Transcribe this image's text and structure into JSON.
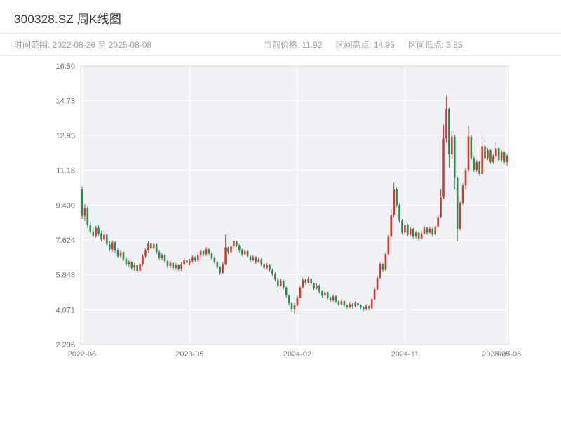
{
  "header": {
    "title": "300328.SZ 周K线图",
    "range_label": "时间范围: 2022-08-26 至 2025-08-08",
    "stats": [
      {
        "label": "当前价格:",
        "value": "11.92"
      },
      {
        "label": "区间高点:",
        "value": "14.95"
      },
      {
        "label": "区间低点:",
        "value": "3.85"
      }
    ]
  },
  "chart_data": {
    "type": "candlestick",
    "title": "300328.SZ 周K线图",
    "symbol": "300328.SZ",
    "period": "weekly",
    "date_range": [
      "2022-08-26",
      "2025-08-08"
    ],
    "current_price": 11.92,
    "range_high": 14.95,
    "range_low": 3.85,
    "xlabel": "",
    "ylabel": "",
    "ylim": [
      2.295,
      16.5
    ],
    "y_ticks": [
      {
        "value": 16.5,
        "label": "16.50"
      },
      {
        "value": 14.73,
        "label": "14.73"
      },
      {
        "value": 12.95,
        "label": "12.95"
      },
      {
        "value": 11.18,
        "label": "11.18"
      },
      {
        "value": 9.4,
        "label": "9.400"
      },
      {
        "value": 7.624,
        "label": "7.624"
      },
      {
        "value": 5.848,
        "label": "5.848"
      },
      {
        "value": 4.071,
        "label": "4.071"
      },
      {
        "value": 2.295,
        "label": "2.295"
      }
    ],
    "x_ticks": [
      {
        "index": 0,
        "label": "2022-08",
        "grid": true
      },
      {
        "index": 39,
        "label": "2023-05",
        "grid": true
      },
      {
        "index": 78,
        "label": "2024-02",
        "grid": true
      },
      {
        "index": 117,
        "label": "2024-11",
        "grid": true
      },
      {
        "index": 150,
        "label": "2025-07",
        "grid": false
      },
      {
        "index": 154,
        "label": "2025-08",
        "grid": true
      }
    ],
    "colors": {
      "up": "#cc3e33",
      "down": "#2e8b50",
      "panel": "#f0f1f5",
      "grid": "#ffffff",
      "border": "#d9dbe1",
      "axis_text": "#70737e"
    },
    "candles": [
      [
        10.2,
        10.35,
        8.7,
        8.85
      ],
      [
        8.85,
        9.45,
        8.6,
        9.25
      ],
      [
        9.25,
        9.35,
        8.25,
        8.4
      ],
      [
        8.4,
        8.55,
        7.95,
        8.05
      ],
      [
        8.05,
        8.3,
        7.75,
        7.85
      ],
      [
        7.85,
        8.35,
        7.75,
        8.25
      ],
      [
        8.25,
        8.4,
        7.85,
        7.95
      ],
      [
        7.95,
        8.1,
        7.55,
        7.65
      ],
      [
        7.65,
        8.0,
        7.55,
        7.9
      ],
      [
        7.9,
        7.95,
        7.3,
        7.4
      ],
      [
        7.4,
        7.55,
        7.05,
        7.15
      ],
      [
        7.15,
        7.6,
        7.05,
        7.5
      ],
      [
        7.5,
        7.55,
        7.0,
        7.1
      ],
      [
        7.1,
        7.2,
        6.7,
        6.8
      ],
      [
        6.8,
        7.1,
        6.7,
        7.0
      ],
      [
        7.0,
        7.05,
        6.55,
        6.65
      ],
      [
        6.65,
        6.75,
        6.3,
        6.4
      ],
      [
        6.4,
        6.6,
        6.25,
        6.5
      ],
      [
        6.5,
        6.55,
        6.1,
        6.2
      ],
      [
        6.2,
        6.45,
        6.05,
        6.35
      ],
      [
        6.35,
        6.4,
        5.95,
        6.05
      ],
      [
        6.05,
        6.5,
        5.95,
        6.4
      ],
      [
        6.4,
        6.9,
        6.3,
        6.8
      ],
      [
        6.8,
        7.2,
        6.7,
        7.1
      ],
      [
        7.1,
        7.55,
        7.0,
        7.45
      ],
      [
        7.45,
        7.5,
        7.1,
        7.2
      ],
      [
        7.2,
        7.5,
        7.1,
        7.4
      ],
      [
        7.4,
        7.45,
        6.9,
        7.0
      ],
      [
        7.0,
        7.1,
        6.6,
        6.7
      ],
      [
        6.7,
        6.95,
        6.6,
        6.85
      ],
      [
        6.85,
        6.9,
        6.45,
        6.55
      ],
      [
        6.55,
        6.6,
        6.2,
        6.3
      ],
      [
        6.3,
        6.55,
        6.2,
        6.45
      ],
      [
        6.45,
        6.5,
        6.1,
        6.2
      ],
      [
        6.2,
        6.45,
        6.1,
        6.35
      ],
      [
        6.35,
        6.4,
        6.05,
        6.15
      ],
      [
        6.15,
        6.5,
        6.05,
        6.4
      ],
      [
        6.4,
        6.7,
        6.3,
        6.6
      ],
      [
        6.6,
        6.65,
        6.35,
        6.45
      ],
      [
        6.45,
        6.65,
        6.35,
        6.55
      ],
      [
        6.55,
        6.85,
        6.45,
        6.75
      ],
      [
        6.75,
        6.8,
        6.5,
        6.6
      ],
      [
        6.6,
        6.95,
        6.5,
        6.85
      ],
      [
        6.85,
        7.15,
        6.75,
        7.05
      ],
      [
        7.05,
        7.1,
        6.8,
        6.9
      ],
      [
        6.9,
        7.25,
        6.8,
        7.15
      ],
      [
        7.15,
        7.2,
        6.85,
        6.95
      ],
      [
        6.95,
        7.0,
        6.6,
        6.7
      ],
      [
        6.7,
        6.8,
        6.4,
        6.5
      ],
      [
        6.5,
        6.55,
        6.15,
        6.25
      ],
      [
        6.25,
        6.3,
        5.85,
        5.95
      ],
      [
        5.95,
        6.5,
        5.9,
        6.4
      ],
      [
        6.4,
        7.9,
        6.35,
        7.25
      ],
      [
        7.25,
        7.3,
        6.9,
        7.0
      ],
      [
        7.0,
        7.4,
        6.95,
        7.3
      ],
      [
        7.3,
        7.65,
        7.2,
        7.55
      ],
      [
        7.55,
        7.6,
        7.25,
        7.35
      ],
      [
        7.35,
        7.4,
        7.0,
        7.1
      ],
      [
        7.1,
        7.2,
        6.8,
        6.9
      ],
      [
        6.9,
        7.15,
        6.85,
        7.05
      ],
      [
        7.05,
        7.1,
        6.7,
        6.8
      ],
      [
        6.8,
        6.85,
        6.5,
        6.6
      ],
      [
        6.6,
        6.85,
        6.55,
        6.75
      ],
      [
        6.75,
        6.8,
        6.4,
        6.5
      ],
      [
        6.5,
        6.75,
        6.45,
        6.65
      ],
      [
        6.65,
        6.7,
        6.3,
        6.4
      ],
      [
        6.4,
        6.45,
        6.1,
        6.2
      ],
      [
        6.2,
        6.45,
        6.1,
        6.35
      ],
      [
        6.35,
        6.4,
        6.0,
        6.1
      ],
      [
        6.1,
        6.15,
        5.8,
        5.9
      ],
      [
        5.9,
        6.0,
        5.5,
        5.6
      ],
      [
        5.6,
        5.7,
        5.2,
        5.3
      ],
      [
        5.3,
        5.65,
        5.25,
        5.55
      ],
      [
        5.55,
        5.6,
        5.1,
        5.2
      ],
      [
        5.2,
        5.25,
        4.7,
        4.8
      ],
      [
        4.8,
        4.85,
        4.3,
        4.4
      ],
      [
        4.4,
        4.45,
        3.95,
        4.1
      ],
      [
        4.1,
        4.4,
        3.85,
        4.3
      ],
      [
        4.3,
        4.8,
        4.25,
        4.7
      ],
      [
        4.7,
        5.3,
        4.65,
        5.2
      ],
      [
        5.2,
        5.7,
        5.15,
        5.6
      ],
      [
        5.6,
        5.65,
        5.35,
        5.45
      ],
      [
        5.45,
        5.75,
        5.4,
        5.65
      ],
      [
        5.65,
        5.7,
        5.3,
        5.4
      ],
      [
        5.4,
        5.45,
        5.05,
        5.15
      ],
      [
        5.15,
        5.4,
        5.1,
        5.3
      ],
      [
        5.3,
        5.35,
        4.9,
        5.0
      ],
      [
        5.0,
        5.05,
        4.7,
        4.8
      ],
      [
        4.8,
        5.05,
        4.75,
        4.95
      ],
      [
        4.95,
        5.0,
        4.6,
        4.7
      ],
      [
        4.7,
        4.75,
        4.45,
        4.55
      ],
      [
        4.55,
        4.85,
        4.5,
        4.75
      ],
      [
        4.75,
        4.8,
        4.4,
        4.5
      ],
      [
        4.5,
        4.55,
        4.25,
        4.35
      ],
      [
        4.35,
        4.6,
        4.3,
        4.5
      ],
      [
        4.5,
        4.55,
        4.2,
        4.3
      ],
      [
        4.3,
        4.35,
        4.1,
        4.2
      ],
      [
        4.2,
        4.45,
        4.15,
        4.35
      ],
      [
        4.35,
        4.4,
        4.15,
        4.25
      ],
      [
        4.25,
        4.5,
        4.2,
        4.4
      ],
      [
        4.4,
        4.45,
        4.2,
        4.3
      ],
      [
        4.3,
        4.35,
        4.1,
        4.2
      ],
      [
        4.2,
        4.25,
        4.0,
        4.1
      ],
      [
        4.1,
        4.35,
        4.05,
        4.25
      ],
      [
        4.25,
        4.3,
        4.05,
        4.15
      ],
      [
        4.15,
        4.65,
        4.1,
        4.6
      ],
      [
        4.6,
        5.2,
        4.55,
        5.1
      ],
      [
        5.1,
        5.8,
        5.05,
        5.7
      ],
      [
        5.7,
        6.5,
        5.65,
        6.4
      ],
      [
        6.4,
        6.45,
        6.0,
        6.1
      ],
      [
        6.1,
        7.0,
        6.05,
        6.9
      ],
      [
        6.9,
        7.9,
        6.85,
        7.8
      ],
      [
        7.8,
        9.2,
        7.75,
        8.9
      ],
      [
        8.9,
        10.55,
        8.8,
        10.2
      ],
      [
        10.2,
        10.3,
        9.3,
        9.4
      ],
      [
        9.4,
        9.5,
        8.5,
        8.6
      ],
      [
        8.6,
        8.7,
        7.9,
        8.0
      ],
      [
        8.0,
        8.5,
        7.9,
        8.4
      ],
      [
        8.4,
        8.45,
        7.8,
        7.9
      ],
      [
        7.9,
        8.3,
        7.8,
        8.2
      ],
      [
        8.2,
        8.25,
        7.7,
        7.8
      ],
      [
        7.8,
        8.1,
        7.7,
        8.0
      ],
      [
        8.0,
        8.05,
        7.6,
        7.7
      ],
      [
        7.7,
        8.05,
        7.65,
        7.95
      ],
      [
        7.95,
        8.35,
        7.9,
        8.25
      ],
      [
        8.25,
        8.3,
        7.9,
        8.0
      ],
      [
        8.0,
        8.3,
        7.95,
        8.2
      ],
      [
        8.2,
        8.25,
        7.8,
        7.9
      ],
      [
        7.9,
        8.4,
        7.85,
        8.3
      ],
      [
        8.3,
        8.9,
        8.25,
        8.8
      ],
      [
        8.8,
        10.2,
        8.75,
        9.8
      ],
      [
        9.8,
        13.5,
        9.7,
        12.8
      ],
      [
        12.8,
        14.95,
        12.6,
        14.3
      ],
      [
        14.3,
        14.4,
        11.3,
        12.0
      ],
      [
        12.0,
        13.2,
        11.8,
        12.9
      ],
      [
        12.9,
        13.0,
        10.2,
        10.8
      ],
      [
        10.8,
        10.9,
        7.55,
        8.2
      ],
      [
        8.2,
        9.6,
        8.1,
        9.5
      ],
      [
        9.5,
        10.5,
        9.4,
        10.4
      ],
      [
        10.4,
        11.3,
        10.2,
        11.2
      ],
      [
        11.2,
        13.45,
        11.1,
        12.9
      ],
      [
        12.9,
        13.0,
        11.7,
        11.8
      ],
      [
        11.8,
        11.9,
        11.1,
        11.2
      ],
      [
        11.2,
        11.7,
        11.1,
        11.6
      ],
      [
        11.6,
        11.65,
        10.9,
        11.0
      ],
      [
        11.0,
        13.0,
        10.95,
        12.4
      ],
      [
        12.4,
        12.5,
        11.7,
        11.8
      ],
      [
        11.8,
        12.3,
        11.7,
        12.2
      ],
      [
        12.2,
        12.25,
        11.5,
        11.6
      ],
      [
        11.6,
        12.0,
        11.5,
        11.9
      ],
      [
        11.9,
        12.6,
        11.8,
        12.3
      ],
      [
        12.3,
        12.35,
        11.6,
        11.7
      ],
      [
        11.7,
        12.2,
        11.6,
        12.1
      ],
      [
        12.1,
        12.15,
        11.5,
        11.6
      ],
      [
        11.6,
        12.0,
        11.4,
        11.92
      ]
    ]
  }
}
